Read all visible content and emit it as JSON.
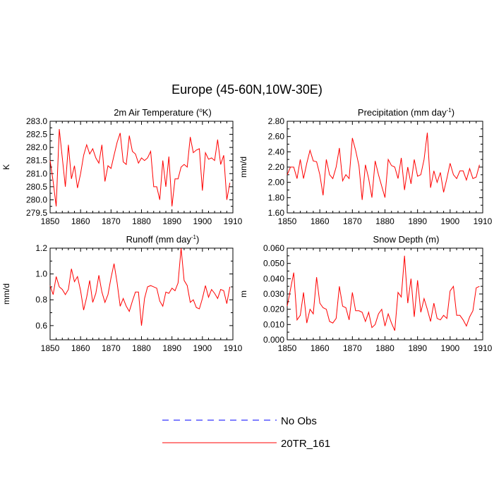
{
  "figure": {
    "title": "Europe (45-60N,10W-30E)"
  },
  "legend": {
    "entries": [
      {
        "label": "No Obs",
        "color": "#0000ff",
        "style": "dashed"
      },
      {
        "label": "20TR_161",
        "color": "#ff0000",
        "style": "solid"
      }
    ]
  },
  "chart_data": [
    {
      "type": "line",
      "title_main": "2m Air Temperature (",
      "title_sup": "o",
      "title_end": "K)",
      "ylabel": "K",
      "xlim": [
        1850,
        1910
      ],
      "ylim": [
        279.5,
        283.0
      ],
      "xticks": [
        "1850",
        "1860",
        "1870",
        "1880",
        "1890",
        "1900",
        "1910"
      ],
      "yticks": [
        "279.5",
        "280.0",
        "280.5",
        "281.0",
        "281.5",
        "282.0",
        "282.5",
        "283.0"
      ],
      "ytick_values": [
        279.5,
        280.0,
        280.5,
        281.0,
        281.5,
        282.0,
        282.5,
        283.0
      ],
      "series": [
        {
          "name": "20TR_161",
          "color": "#ff0000",
          "x": [
            1850,
            1851,
            1852,
            1853,
            1854,
            1855,
            1856,
            1857,
            1858,
            1859,
            1860,
            1861,
            1862,
            1863,
            1864,
            1865,
            1866,
            1867,
            1868,
            1869,
            1870,
            1871,
            1872,
            1873,
            1874,
            1875,
            1876,
            1877,
            1878,
            1879,
            1880,
            1881,
            1882,
            1883,
            1884,
            1885,
            1886,
            1887,
            1888,
            1889,
            1890,
            1891,
            1892,
            1893,
            1894,
            1895,
            1896,
            1897,
            1898,
            1899,
            1900,
            1901,
            1902,
            1903,
            1904,
            1905,
            1906,
            1907,
            1908,
            1909
          ],
          "values": [
            281.5,
            280.7,
            279.75,
            282.7,
            281.6,
            280.5,
            282.1,
            280.8,
            281.3,
            280.45,
            281.0,
            281.7,
            282.1,
            281.75,
            281.95,
            281.6,
            281.4,
            282.1,
            280.7,
            281.3,
            281.2,
            281.7,
            282.2,
            282.55,
            281.45,
            281.35,
            282.45,
            281.85,
            281.75,
            281.4,
            281.6,
            281.5,
            281.6,
            281.85,
            280.5,
            280.5,
            280.0,
            281.5,
            280.5,
            281.65,
            279.75,
            280.8,
            280.8,
            281.25,
            281.35,
            281.25,
            282.4,
            281.8,
            281.9,
            281.95,
            280.35,
            281.8,
            281.55,
            281.6,
            281.5,
            282.3,
            281.35,
            281.7,
            280.0,
            280.65
          ]
        }
      ]
    },
    {
      "type": "line",
      "title_main": "Precipitation (mm day",
      "title_sup": "-1",
      "title_end": ")",
      "ylabel": "mm/d",
      "xlim": [
        1850,
        1910
      ],
      "ylim": [
        1.6,
        2.8
      ],
      "xticks": [
        "1850",
        "1860",
        "1870",
        "1880",
        "1890",
        "1900",
        "1910"
      ],
      "yticks": [
        "1.60",
        "1.80",
        "2.00",
        "2.20",
        "2.40",
        "2.60",
        "2.80"
      ],
      "ytick_values": [
        1.6,
        1.8,
        2.0,
        2.2,
        2.4,
        2.6,
        2.8
      ],
      "series": [
        {
          "name": "20TR_161",
          "color": "#ff0000",
          "x": [
            1850,
            1851,
            1852,
            1853,
            1854,
            1855,
            1856,
            1857,
            1858,
            1859,
            1860,
            1861,
            1862,
            1863,
            1864,
            1865,
            1866,
            1867,
            1868,
            1869,
            1870,
            1871,
            1872,
            1873,
            1874,
            1875,
            1876,
            1877,
            1878,
            1879,
            1880,
            1881,
            1882,
            1883,
            1884,
            1885,
            1886,
            1887,
            1888,
            1889,
            1890,
            1891,
            1892,
            1893,
            1894,
            1895,
            1896,
            1897,
            1898,
            1899,
            1900,
            1901,
            1902,
            1903,
            1904,
            1905,
            1906,
            1907,
            1908,
            1909
          ],
          "values": [
            2.1,
            2.2,
            2.2,
            2.05,
            2.3,
            2.05,
            2.25,
            2.42,
            2.28,
            2.27,
            2.1,
            1.83,
            2.3,
            2.1,
            2.05,
            2.2,
            2.45,
            2.02,
            2.1,
            2.05,
            2.58,
            2.42,
            2.22,
            1.77,
            2.23,
            2.05,
            1.8,
            2.28,
            2.1,
            1.95,
            1.8,
            2.3,
            2.22,
            2.2,
            2.05,
            2.32,
            1.9,
            2.2,
            1.98,
            2.3,
            2.08,
            2.1,
            2.3,
            2.65,
            1.93,
            2.15,
            2.0,
            2.13,
            1.87,
            2.05,
            2.25,
            2.1,
            2.05,
            2.15,
            2.15,
            2.03,
            2.18,
            2.05,
            2.07,
            2.23
          ]
        }
      ]
    },
    {
      "type": "line",
      "title_main": "Runoff (mm day",
      "title_sup": "-1",
      "title_end": ")",
      "ylabel": "mm/d",
      "xlim": [
        1850,
        1910
      ],
      "ylim": [
        0.49,
        1.2
      ],
      "xticks": [
        "1850",
        "1860",
        "1870",
        "1880",
        "1890",
        "1900",
        "1910"
      ],
      "yticks": [
        "0.6",
        "0.8",
        "1.0",
        "1.2"
      ],
      "ytick_values": [
        0.6,
        0.8,
        1.0,
        1.2
      ],
      "series": [
        {
          "name": "20TR_161",
          "color": "#ff0000",
          "x": [
            1850,
            1851,
            1852,
            1853,
            1854,
            1855,
            1856,
            1857,
            1858,
            1859,
            1860,
            1861,
            1862,
            1863,
            1864,
            1865,
            1866,
            1867,
            1868,
            1869,
            1870,
            1871,
            1872,
            1873,
            1874,
            1875,
            1876,
            1877,
            1878,
            1879,
            1880,
            1881,
            1882,
            1883,
            1884,
            1885,
            1886,
            1887,
            1888,
            1889,
            1890,
            1891,
            1892,
            1893,
            1894,
            1895,
            1896,
            1897,
            1898,
            1899,
            1900,
            1901,
            1902,
            1903,
            1904,
            1905,
            1906,
            1907,
            1908,
            1909
          ],
          "values": [
            0.91,
            0.84,
            0.98,
            0.9,
            0.88,
            0.84,
            0.88,
            1.04,
            0.94,
            0.98,
            0.87,
            0.72,
            0.82,
            0.95,
            0.78,
            0.85,
            0.99,
            0.86,
            0.78,
            0.84,
            0.97,
            1.08,
            0.93,
            0.75,
            0.81,
            0.75,
            0.71,
            0.79,
            0.86,
            0.86,
            0.6,
            0.81,
            0.9,
            0.91,
            0.9,
            0.89,
            0.79,
            0.75,
            0.86,
            0.85,
            0.89,
            0.87,
            0.93,
            1.2,
            0.95,
            0.91,
            0.78,
            0.8,
            0.74,
            0.73,
            0.81,
            0.91,
            0.82,
            0.88,
            0.85,
            0.81,
            0.88,
            0.87,
            0.77,
            0.9
          ]
        }
      ]
    },
    {
      "type": "line",
      "title_main": "Snow Depth (m)",
      "title_sup": "",
      "title_end": "",
      "ylabel": "m",
      "xlim": [
        1850,
        1910
      ],
      "ylim": [
        0.0,
        0.06
      ],
      "xticks": [
        "1850",
        "1860",
        "1870",
        "1880",
        "1890",
        "1900",
        "1910"
      ],
      "yticks": [
        "0.000",
        "0.010",
        "0.020",
        "0.030",
        "0.040",
        "0.050",
        "0.060"
      ],
      "ytick_values": [
        0.0,
        0.01,
        0.02,
        0.03,
        0.04,
        0.05,
        0.06
      ],
      "series": [
        {
          "name": "20TR_161",
          "color": "#ff0000",
          "x": [
            1850,
            1851,
            1852,
            1853,
            1854,
            1855,
            1856,
            1857,
            1858,
            1859,
            1860,
            1861,
            1862,
            1863,
            1864,
            1865,
            1866,
            1867,
            1868,
            1869,
            1870,
            1871,
            1872,
            1873,
            1874,
            1875,
            1876,
            1877,
            1878,
            1879,
            1880,
            1881,
            1882,
            1883,
            1884,
            1885,
            1886,
            1887,
            1888,
            1889,
            1890,
            1891,
            1892,
            1893,
            1894,
            1895,
            1896,
            1897,
            1898,
            1899,
            1900,
            1901,
            1902,
            1903,
            1904,
            1905,
            1906,
            1907,
            1908,
            1909
          ],
          "values": [
            0.022,
            0.033,
            0.044,
            0.013,
            0.016,
            0.031,
            0.011,
            0.02,
            0.017,
            0.041,
            0.024,
            0.021,
            0.02,
            0.012,
            0.011,
            0.014,
            0.035,
            0.022,
            0.021,
            0.013,
            0.031,
            0.019,
            0.019,
            0.018,
            0.012,
            0.018,
            0.008,
            0.01,
            0.017,
            0.02,
            0.009,
            0.017,
            0.011,
            0.006,
            0.031,
            0.028,
            0.055,
            0.024,
            0.04,
            0.015,
            0.039,
            0.018,
            0.027,
            0.02,
            0.012,
            0.024,
            0.014,
            0.013,
            0.016,
            0.014,
            0.032,
            0.035,
            0.016,
            0.016,
            0.013,
            0.009,
            0.015,
            0.019,
            0.034,
            0.035
          ]
        }
      ]
    }
  ]
}
